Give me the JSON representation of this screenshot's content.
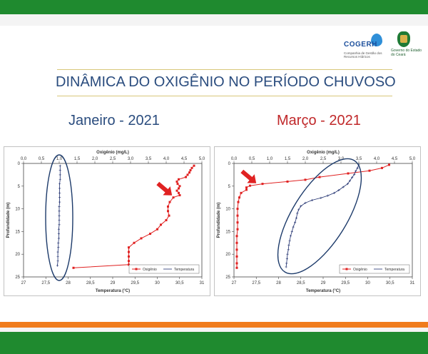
{
  "header": {
    "title": "DINÂMICA DO OXIGÊNIO NO PERÍODO CHUVOSO",
    "logo_cogerh": {
      "name": "COGERH",
      "subtitle": "Companhia de Gestão dos Recursos Hídricos"
    },
    "logo_gov": {
      "name": "Governo do Estado do Ceará"
    }
  },
  "colors": {
    "top_bar": "#1f8a2f",
    "bottom_orange": "#f07c1c",
    "title": "#2a4c7e",
    "month_jan": "#2a4c7e",
    "month_mar": "#c0282a",
    "oxygen_series": "#e02222",
    "temperature_series": "#1f2f6e",
    "ellipse": "#1c3a6a",
    "arrow": "#e02222"
  },
  "chart_data": [
    {
      "type": "line",
      "panel_title": "Janeiro - 2021",
      "top_axis_label": "Oxigênio (mg/L)",
      "bottom_axis_label": "Temperatura (°C)",
      "ylabel": "Profundidade (m)",
      "oxygen_range": [
        0,
        5
      ],
      "oxygen_ticks": [
        "0,0",
        "0,5",
        "1,0",
        "1,5",
        "2,0",
        "2,5",
        "3,0",
        "3,5",
        "4,0",
        "4,5",
        "5,0"
      ],
      "temperature_range": [
        27,
        31
      ],
      "temperature_ticks": [
        "27",
        "27,5",
        "28",
        "28,5",
        "29",
        "29,5",
        "30",
        "30,5",
        "31"
      ],
      "depth_range": [
        0,
        25
      ],
      "depth_ticks": [
        "0",
        "5",
        "10",
        "15",
        "20",
        "25"
      ],
      "inverted_y": true,
      "legend_position": "bottom-right",
      "series": [
        {
          "name": "Oxigênio",
          "axis": "top",
          "points": [
            [
              4.78,
              0.5
            ],
            [
              4.72,
              1
            ],
            [
              4.68,
              1.5
            ],
            [
              4.65,
              2
            ],
            [
              4.6,
              2.5
            ],
            [
              4.55,
              3
            ],
            [
              4.35,
              3.5
            ],
            [
              4.3,
              4
            ],
            [
              4.32,
              4.5
            ],
            [
              4.38,
              5
            ],
            [
              4.35,
              5.5
            ],
            [
              4.3,
              6
            ],
            [
              4.35,
              6.5
            ],
            [
              4.38,
              7
            ],
            [
              4.2,
              7.5
            ],
            [
              4.1,
              8.5
            ],
            [
              4.05,
              9.5
            ],
            [
              4.05,
              10.5
            ],
            [
              4.08,
              11.5
            ],
            [
              4.0,
              12.5
            ],
            [
              3.85,
              13.5
            ],
            [
              3.75,
              14.5
            ],
            [
              3.55,
              15.5
            ],
            [
              3.3,
              16.5
            ],
            [
              3.1,
              17.5
            ],
            [
              2.95,
              18.5
            ],
            [
              2.95,
              19.5
            ],
            [
              2.95,
              20.5
            ],
            [
              2.95,
              21.5
            ],
            [
              2.95,
              22.3
            ],
            [
              1.4,
              23
            ]
          ]
        },
        {
          "name": "Temperatura",
          "axis": "bottom",
          "points": [
            [
              27.82,
              0.5
            ],
            [
              27.82,
              1.5
            ],
            [
              27.82,
              2.5
            ],
            [
              27.82,
              3.5
            ],
            [
              27.81,
              4.5
            ],
            [
              27.81,
              5.5
            ],
            [
              27.81,
              6.5
            ],
            [
              27.81,
              7.5
            ],
            [
              27.81,
              8.5
            ],
            [
              27.8,
              9.5
            ],
            [
              27.8,
              10.5
            ],
            [
              27.8,
              11.5
            ],
            [
              27.8,
              12.5
            ],
            [
              27.8,
              13.5
            ],
            [
              27.79,
              14.5
            ],
            [
              27.79,
              15.5
            ],
            [
              27.79,
              16.5
            ],
            [
              27.78,
              17.5
            ],
            [
              27.78,
              18.5
            ],
            [
              27.77,
              19.5
            ],
            [
              27.77,
              20.5
            ],
            [
              27.77,
              21.5
            ],
            [
              27.76,
              22.5
            ]
          ]
        }
      ]
    },
    {
      "type": "line",
      "panel_title": "Março - 2021",
      "top_axis_label": "Oxigênio (mg/L)",
      "bottom_axis_label": "Temperatura (°C)",
      "ylabel": "Profundidade (m)",
      "oxygen_range": [
        0,
        5
      ],
      "oxygen_ticks": [
        "0,0",
        "0,5",
        "1,0",
        "1,5",
        "2,0",
        "2,5",
        "3,0",
        "3,5",
        "4,0",
        "4,5",
        "5,0"
      ],
      "temperature_range": [
        27,
        31
      ],
      "temperature_ticks": [
        "27",
        "27,5",
        "28",
        "28,5",
        "29",
        "29,5",
        "30",
        "30,5",
        "31"
      ],
      "depth_range": [
        0,
        25
      ],
      "depth_ticks": [
        "0",
        "5",
        "10",
        "15",
        "20",
        "25"
      ],
      "inverted_y": true,
      "legend_position": "bottom-right",
      "series": [
        {
          "name": "Oxigênio",
          "axis": "top",
          "points": [
            [
              4.35,
              0.3
            ],
            [
              4.15,
              1.0
            ],
            [
              3.8,
              1.6
            ],
            [
              3.2,
              2.2
            ],
            [
              2.4,
              3.0
            ],
            [
              2.0,
              3.6
            ],
            [
              1.5,
              4.0
            ],
            [
              0.8,
              4.5
            ],
            [
              0.45,
              4.9
            ],
            [
              0.35,
              5.3
            ],
            [
              0.35,
              5.8
            ],
            [
              0.2,
              6.5
            ],
            [
              0.15,
              7.5
            ],
            [
              0.12,
              8.5
            ],
            [
              0.1,
              10
            ],
            [
              0.1,
              11.5
            ],
            [
              0.1,
              13
            ],
            [
              0.1,
              14.5
            ],
            [
              0.08,
              16
            ],
            [
              0.08,
              17.5
            ],
            [
              0.08,
              19
            ],
            [
              0.08,
              20.5
            ],
            [
              0.08,
              22
            ],
            [
              0.08,
              23
            ]
          ]
        },
        {
          "name": "Temperatura",
          "axis": "bottom",
          "points": [
            [
              29.8,
              0.3
            ],
            [
              29.77,
              1.0
            ],
            [
              29.73,
              1.7
            ],
            [
              29.7,
              2.4
            ],
            [
              29.65,
              3.1
            ],
            [
              29.6,
              3.8
            ],
            [
              29.55,
              4.5
            ],
            [
              29.45,
              5.2
            ],
            [
              29.35,
              5.9
            ],
            [
              29.25,
              6.5
            ],
            [
              29.1,
              7.1
            ],
            [
              28.95,
              7.6
            ],
            [
              28.75,
              8.1
            ],
            [
              28.6,
              8.7
            ],
            [
              28.5,
              9.4
            ],
            [
              28.45,
              10.2
            ],
            [
              28.42,
              11.0
            ],
            [
              28.4,
              12.0
            ],
            [
              28.37,
              13.0
            ],
            [
              28.33,
              14.0
            ],
            [
              28.3,
              15.0
            ],
            [
              28.27,
              16.0
            ],
            [
              28.25,
              17.0
            ],
            [
              28.23,
              18.0
            ],
            [
              28.22,
              19.0
            ],
            [
              28.2,
              20.0
            ],
            [
              28.19,
              21.0
            ],
            [
              28.18,
              22.0
            ],
            [
              28.17,
              22.8
            ]
          ]
        }
      ]
    }
  ]
}
